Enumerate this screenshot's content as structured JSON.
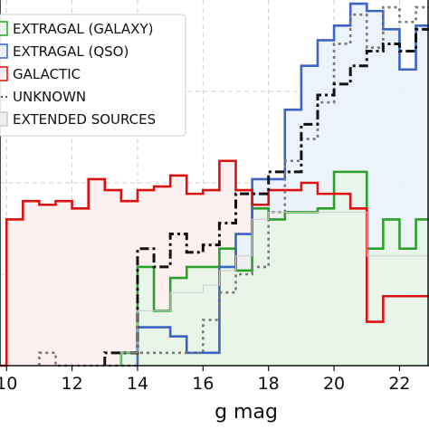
{
  "chart_data": {
    "type": "step-histogram",
    "xlabel": "g mag",
    "ylabel": "",
    "xlim": [
      9.8,
      22.9
    ],
    "ylim": [
      0,
      1
    ],
    "grid": true,
    "legend_position": "top-left",
    "xticks": [
      10,
      12,
      14,
      16,
      18,
      20,
      22
    ],
    "bin_width": 0.5,
    "series": [
      {
        "name": "EXTRAGAL (GALAXY)",
        "color": "#2ca02c",
        "fill": "#e8f5e8",
        "style": "solid",
        "x": [
          13.5,
          14.0,
          14.5,
          15.0,
          15.5,
          16.0,
          16.5,
          17.0,
          17.5,
          18.0,
          18.5,
          19.0,
          19.5,
          20.0,
          20.5,
          21.0,
          21.5,
          22.0,
          22.5
        ],
        "values": [
          0.035,
          0.27,
          0.15,
          0.24,
          0.27,
          0.27,
          0.32,
          0.26,
          0.43,
          0.4,
          0.42,
          0.42,
          0.43,
          0.53,
          0.53,
          0.32,
          0.4,
          0.32,
          0.4
        ]
      },
      {
        "name": "EXTRAGAL (QSO)",
        "color": "#3b64c4",
        "fill": "#eaf2fb",
        "style": "solid",
        "x": [
          14.0,
          14.5,
          15.0,
          15.5,
          16.0,
          16.5,
          17.0,
          17.5,
          18.0,
          18.5,
          19.0,
          19.5,
          20.0,
          20.5,
          21.0,
          21.5,
          22.0,
          22.5
        ],
        "values": [
          0.105,
          0.105,
          0.08,
          0.035,
          0.035,
          0.27,
          0.36,
          0.51,
          0.51,
          0.7,
          0.82,
          0.89,
          0.93,
          0.99,
          0.97,
          0.92,
          0.81,
          0.93
        ]
      },
      {
        "name": "GALACTIC",
        "color": "#dd1111",
        "fill": "#fdeeee",
        "style": "solid",
        "x": [
          9.5,
          10.0,
          10.5,
          11.0,
          11.5,
          12.0,
          12.5,
          13.0,
          13.5,
          14.0,
          14.5,
          15.0,
          15.5,
          16.0,
          16.5,
          17.0,
          17.5,
          18.0,
          18.5,
          19.0,
          19.5,
          20.0,
          20.5,
          21.0,
          21.5,
          22.0,
          22.5
        ],
        "values": [
          0.0,
          0.4,
          0.45,
          0.44,
          0.45,
          0.43,
          0.51,
          0.48,
          0.45,
          0.48,
          0.49,
          0.52,
          0.47,
          0.48,
          0.56,
          0.48,
          0.44,
          0.48,
          0.48,
          0.5,
          0.47,
          0.47,
          0.43,
          0.12,
          0.19,
          0.19,
          0.19
        ]
      },
      {
        "name": "UNKNOWN",
        "color": "#777777",
        "fill": "none",
        "style": "dotted",
        "x": [
          11.0,
          11.5,
          12.0,
          12.5,
          13.0,
          13.5,
          14.0,
          14.5,
          15.0,
          15.5,
          16.0,
          16.5,
          17.0,
          17.5,
          18.0,
          18.5,
          19.0,
          19.5,
          20.0,
          20.5,
          21.0,
          21.5,
          22.0,
          22.5
        ],
        "values": [
          0.035,
          0.0,
          0.0,
          0.0,
          0.0,
          0.0,
          0.035,
          0.035,
          0.035,
          0.035,
          0.125,
          0.2,
          0.25,
          0.27,
          0.42,
          0.56,
          0.62,
          0.72,
          0.88,
          0.96,
          0.87,
          0.98,
          0.94,
          0.98
        ]
      },
      {
        "name": "UNKNOWN (dash-dot)",
        "color": "#111111",
        "fill": "none",
        "style": "dashdot",
        "x": [
          13.0,
          13.5,
          14.0,
          14.5,
          15.0,
          15.5,
          16.0,
          16.5,
          17.0,
          17.5,
          18.0,
          18.5,
          19.0,
          19.5,
          20.0,
          20.5,
          21.0,
          21.5,
          22.0,
          22.5
        ],
        "values": [
          0.035,
          0.035,
          0.32,
          0.27,
          0.36,
          0.31,
          0.33,
          0.39,
          0.47,
          0.47,
          0.53,
          0.53,
          0.66,
          0.74,
          0.77,
          0.82,
          0.86,
          0.88,
          0.86,
          0.92
        ]
      },
      {
        "name": "EXTENDED SOURCES",
        "color": "#cccccc",
        "fill": "#eeeeee",
        "style": "filled",
        "x": [
          13.5,
          14.0,
          14.5,
          15.0,
          15.5,
          16.0,
          16.5,
          17.0,
          17.5,
          18.0,
          18.5,
          19.0,
          19.5,
          20.0,
          20.5,
          21.0,
          21.5,
          22.0,
          22.5
        ],
        "values": [
          0.035,
          0.15,
          0.15,
          0.2,
          0.2,
          0.22,
          0.26,
          0.3,
          0.4,
          0.42,
          0.42,
          0.42,
          0.42,
          0.42,
          0.42,
          0.3,
          0.3,
          0.3,
          0.3
        ]
      }
    ],
    "legend": [
      {
        "label": "EXTRAGAL (GALAXY)",
        "color": "#2ca02c",
        "fill": "#e8f5e8"
      },
      {
        "label": "EXTRAGAL (QSO)",
        "color": "#3b64c4",
        "fill": "#eaf2fb"
      },
      {
        "label": "GALACTIC",
        "color": "#dd1111",
        "fill": "#fdeeee"
      },
      {
        "label": "UNKNOWN",
        "color": "#555555",
        "fill": "none"
      },
      {
        "label": "EXTENDED SOURCES",
        "color": "#cccccc",
        "fill": "#eeeeee"
      }
    ]
  }
}
